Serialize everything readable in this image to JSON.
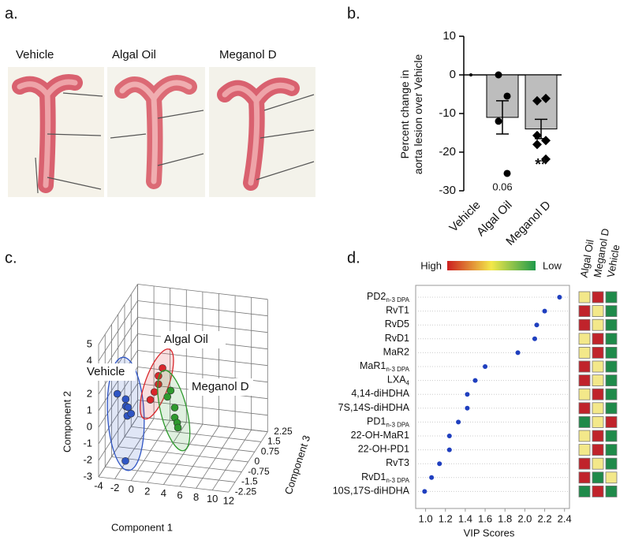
{
  "panel_a": {
    "panel_label": "a.",
    "captions": [
      "Vehicle",
      "Algal Oil",
      "Meganol D"
    ]
  },
  "chart_data": [
    {
      "type": "bar",
      "panel_label": "b.",
      "ylabel": [
        "Percent change in",
        "aorta lesion over Vehicle"
      ],
      "categories": [
        "Vehicle",
        "Algal Oil",
        "Meganol D"
      ],
      "values": [
        0,
        -11,
        -14
      ],
      "errors": [
        0,
        4.3,
        2.5
      ],
      "points": [
        [
          0
        ],
        [
          0,
          -5.5,
          -12,
          -25.5
        ],
        [
          -6.7,
          -6.1,
          -15.7,
          -17,
          -18,
          -21.8
        ]
      ],
      "markers": [
        "circle",
        "circle",
        "diamond"
      ],
      "annotations": [
        null,
        "0.06",
        "**"
      ],
      "color": "#bdbdbd",
      "point_color": "#000000",
      "ylim": [
        -30,
        10
      ],
      "yticks": [
        -30,
        -20,
        -10,
        0,
        10
      ]
    },
    {
      "type": "scatter3d",
      "panel_label": "c.",
      "xlabel": "Component 1",
      "ylabel": "Component 2",
      "zlabel": "Component 3",
      "xlim": [
        -4,
        12
      ],
      "xticks": [
        -4,
        -2,
        0,
        2,
        4,
        6,
        8,
        10,
        12
      ],
      "ylim": [
        -3,
        5
      ],
      "yticks": [
        -3,
        -2,
        -1,
        0,
        1,
        2,
        3,
        4,
        5
      ],
      "zlim": [
        -2.25,
        2.25
      ],
      "zticks": [
        -2.25,
        -1.5,
        -0.75,
        0,
        0.75,
        1.5,
        2.25
      ],
      "grid": true,
      "series": [
        {
          "name": "Vehicle",
          "color": "#2f55c4",
          "x": [
            -2.5,
            -2,
            -2.2,
            -1.5,
            -1.8,
            -0.8,
            -1.5
          ],
          "y": [
            1.5,
            0.8,
            0.2,
            0.5,
            -0.2,
            0.4,
            -2.5
          ],
          "z": [
            -1.5,
            -1,
            -0.8,
            -1.2,
            -1,
            -1.5,
            -1.5
          ]
        },
        {
          "name": "Algal Oil",
          "color": "#d9262b",
          "x": [
            2,
            1.5,
            1.5,
            1,
            0.5
          ],
          "y": [
            2.5,
            2,
            1.5,
            1,
            0.5
          ],
          "z": [
            -0.5,
            -0.5,
            -0.5,
            -0.5,
            -0.5
          ]
        },
        {
          "name": "Meganol D",
          "color": "#2e9a2e",
          "x": [
            3,
            2.6,
            3.5,
            3.5,
            3.8,
            4
          ],
          "y": [
            1.2,
            0.8,
            0.2,
            -0.4,
            -0.7,
            -0.9
          ],
          "z": [
            -0.5,
            -0.5,
            -0.5,
            -0.5,
            -0.5,
            -0.6
          ]
        }
      ]
    },
    {
      "type": "dot",
      "panel_label": "d.",
      "xlabel": "VIP Scores",
      "categories": [
        [
          "PD2",
          "n-3 DPA"
        ],
        [
          "RvT1"
        ],
        [
          "RvD5"
        ],
        [
          "RvD1"
        ],
        [
          "MaR2"
        ],
        [
          "MaR1",
          "n-3 DPA"
        ],
        [
          "LXA",
          "4"
        ],
        [
          "4,14-diHDHA"
        ],
        [
          "7S,14S-diHDHA"
        ],
        [
          "PD1",
          "n-3 DPA"
        ],
        [
          "22-OH-MaR1"
        ],
        [
          "22-OH-PD1"
        ],
        [
          "RvT3"
        ],
        [
          "RvD1",
          "n-3 DPA"
        ],
        [
          "10S,17S-diHDHA"
        ]
      ],
      "values": [
        2.35,
        2.2,
        2.12,
        2.1,
        1.93,
        1.6,
        1.5,
        1.42,
        1.42,
        1.33,
        1.24,
        1.24,
        1.14,
        1.06,
        0.99
      ],
      "color": "#1f3fbf",
      "xlim": [
        0.9,
        2.45
      ],
      "xticks": [
        {
          "value": 1,
          "label": "1.0"
        },
        1.2,
        1.4,
        1.6,
        1.8,
        {
          "value": 2,
          "label": "2.0"
        },
        2.2,
        2.4
      ],
      "legend": {
        "high": "High",
        "low": "Low",
        "colors": [
          "#cc1f1f",
          "#f3e84a",
          "#1f9a4a"
        ]
      },
      "heatmap": {
        "columns": [
          "Algal Oil",
          "Meganol D",
          "Vehicle"
        ],
        "cells": [
          [
            "#f3e88a",
            "#c0232b",
            "#1f8a4a"
          ],
          [
            "#c0232b",
            "#f3e88a",
            "#1f8a4a"
          ],
          [
            "#c0232b",
            "#f3e88a",
            "#1f8a4a"
          ],
          [
            "#f3e88a",
            "#c0232b",
            "#1f8a4a"
          ],
          [
            "#f3e88a",
            "#c0232b",
            "#1f8a4a"
          ],
          [
            "#c0232b",
            "#f3e88a",
            "#1f8a4a"
          ],
          [
            "#c0232b",
            "#f3e88a",
            "#1f8a4a"
          ],
          [
            "#f3e88a",
            "#c0232b",
            "#1f8a4a"
          ],
          [
            "#c0232b",
            "#f3e88a",
            "#1f8a4a"
          ],
          [
            "#1f8a4a",
            "#f3e88a",
            "#c0232b"
          ],
          [
            "#f3e88a",
            "#c0232b",
            "#1f8a4a"
          ],
          [
            "#f3e88a",
            "#c0232b",
            "#1f8a4a"
          ],
          [
            "#c0232b",
            "#f3e88a",
            "#1f8a4a"
          ],
          [
            "#c0232b",
            "#1f8a4a",
            "#f3e88a"
          ],
          [
            "#1f8a4a",
            "#c0232b",
            "#1f8a4a"
          ]
        ]
      }
    }
  ]
}
